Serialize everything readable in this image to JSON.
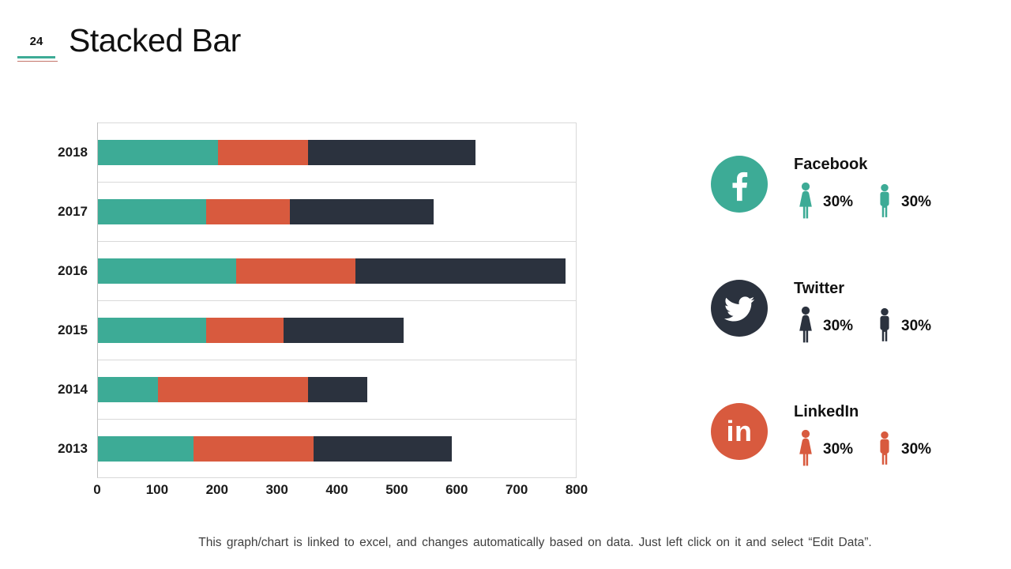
{
  "slide": {
    "number": "24",
    "title": "Stacked Bar",
    "footnote": "This graph/chart is linked to excel, and changes automatically based on data. Just left click on it and select “Edit Data”."
  },
  "colors": {
    "teal": "#3DAB96",
    "orange": "#D85A3E",
    "dark": "#2B323E",
    "grid": "#D9D9D9",
    "axis": "#BFBFBF",
    "header_rule_teal": "#3DAB96",
    "header_rule_red": "#C4756A",
    "text": "#111111"
  },
  "chart_data": {
    "type": "bar",
    "orientation": "horizontal",
    "stacked": true,
    "title": "Stacked Bar",
    "categories": [
      "2018",
      "2017",
      "2016",
      "2015",
      "2014",
      "2013"
    ],
    "series": [
      {
        "name": "series-1-teal",
        "color": "#3DAB96",
        "values": [
          200,
          180,
          230,
          180,
          100,
          160
        ]
      },
      {
        "name": "series-2-orange",
        "color": "#D85A3E",
        "values": [
          150,
          140,
          200,
          130,
          250,
          200
        ]
      },
      {
        "name": "series-3-dark",
        "color": "#2B323E",
        "values": [
          280,
          240,
          350,
          200,
          100,
          230
        ]
      }
    ],
    "totals": [
      630,
      560,
      780,
      510,
      450,
      590
    ],
    "xlim": [
      0,
      800
    ],
    "x_ticks": [
      "0",
      "100",
      "200",
      "300",
      "400",
      "500",
      "600",
      "700",
      "800"
    ],
    "grid": "horizontal category separator lines, light gray; left axis line",
    "legend_position": "external social-media panel at right"
  },
  "legend": {
    "groups": [
      {
        "id": "facebook",
        "label": "Facebook",
        "icon": "facebook-icon",
        "color": "#3DAB96",
        "stats": [
          {
            "icon": "female-icon",
            "value": "30%"
          },
          {
            "icon": "male-icon",
            "value": "30%"
          }
        ]
      },
      {
        "id": "twitter",
        "label": "Twitter",
        "icon": "twitter-icon",
        "color": "#2B323E",
        "stats": [
          {
            "icon": "female-icon",
            "value": "30%"
          },
          {
            "icon": "male-icon",
            "value": "30%"
          }
        ]
      },
      {
        "id": "linkedin",
        "label": "LinkedIn",
        "icon": "linkedin-icon",
        "color": "#D85A3E",
        "stats": [
          {
            "icon": "female-icon",
            "value": "30%"
          },
          {
            "icon": "male-icon",
            "value": "30%"
          }
        ]
      }
    ]
  }
}
